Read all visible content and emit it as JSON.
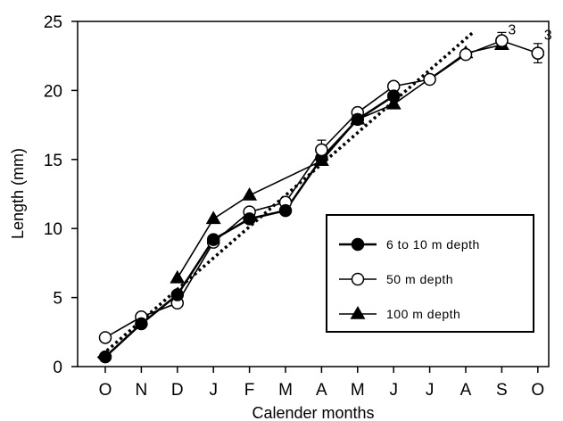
{
  "chart_data": {
    "type": "line",
    "title": "",
    "xlabel": "Calender months",
    "ylabel": "Length (mm)",
    "categories": [
      "O",
      "N",
      "D",
      "J",
      "F",
      "M",
      "A",
      "M",
      "J",
      "J",
      "A",
      "S",
      "O"
    ],
    "ylim": [
      0,
      25
    ],
    "yticks": [
      0,
      5,
      10,
      15,
      20,
      25
    ],
    "grid": false,
    "legend_position": "lower-right",
    "series": [
      {
        "name": "6 to 10 m depth",
        "marker": "filled-circle",
        "color": "#000000",
        "values": [
          0.7,
          3.1,
          5.2,
          9.2,
          10.7,
          11.3,
          15.1,
          17.9,
          19.6,
          null,
          null,
          null,
          null
        ]
      },
      {
        "name": "50 m depth",
        "marker": "open-circle",
        "color": "#000000",
        "values": [
          2.1,
          3.6,
          4.6,
          9.0,
          11.2,
          11.9,
          15.7,
          18.4,
          20.3,
          20.8,
          22.6,
          23.6,
          22.7
        ]
      },
      {
        "name": "100 m depth",
        "marker": "filled-triangle",
        "color": "#000000",
        "values": [
          null,
          null,
          6.4,
          10.7,
          12.4,
          null,
          14.9,
          17.9,
          19.0,
          null,
          22.7,
          23.3,
          null
        ]
      }
    ],
    "trendline": {
      "style": "dotted",
      "from": [
        -0.2,
        0.6
      ],
      "to": [
        10.2,
        24.2
      ]
    },
    "error_bars": [
      {
        "series": 1,
        "index": 6,
        "low": 15.2,
        "high": 16.4
      },
      {
        "series": 1,
        "index": 11,
        "low": 23.2,
        "high": 24.2
      },
      {
        "series": 1,
        "index": 12,
        "low": 22.0,
        "high": 23.4
      }
    ],
    "annotations": [
      {
        "text": "3",
        "at_index": 11,
        "y": 24.2
      },
      {
        "text": "3",
        "at_index": 12,
        "y": 23.8
      }
    ]
  }
}
